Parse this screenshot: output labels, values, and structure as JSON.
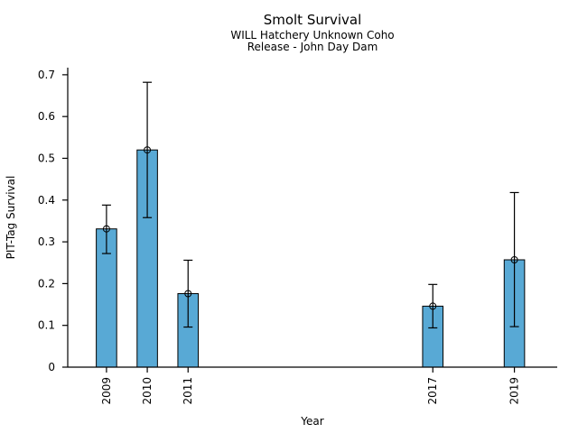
{
  "figure": {
    "title": "Smolt Survival",
    "subtitle_line1": "WILL Hatchery Unknown Coho",
    "subtitle_line2": "Release - John Day Dam"
  },
  "chart_data": {
    "type": "bar",
    "title": "Smolt Survival",
    "subtitle": [
      "WILL Hatchery Unknown Coho",
      "Release - John Day Dam"
    ],
    "xlabel": "Year",
    "ylabel": "PIT-Tag Survival",
    "categories": [
      2009,
      2010,
      2011,
      2017,
      2019
    ],
    "values": [
      0.331,
      0.52,
      0.176,
      0.146,
      0.257
    ],
    "error_low": [
      0.272,
      0.358,
      0.096,
      0.094,
      0.097
    ],
    "error_high": [
      0.388,
      0.682,
      0.256,
      0.198,
      0.418
    ],
    "xlim": [
      2008.05,
      2020.05
    ],
    "ylim": [
      0,
      0.717
    ],
    "yticks": [
      0,
      0.1,
      0.2,
      0.3,
      0.4,
      0.5,
      0.6,
      0.7
    ],
    "ytick_labels": [
      "0",
      "0.1",
      "0.2",
      "0.3",
      "0.4",
      "0.5",
      "0.6",
      "0.7"
    ],
    "x_tick_rotation": 90,
    "bar_width_years": 0.5,
    "bar_color": "#58A9D5",
    "bar_edge_color": "#000000",
    "error_color": "#000000",
    "marker": "open-circle",
    "grid": false,
    "legend": null
  }
}
